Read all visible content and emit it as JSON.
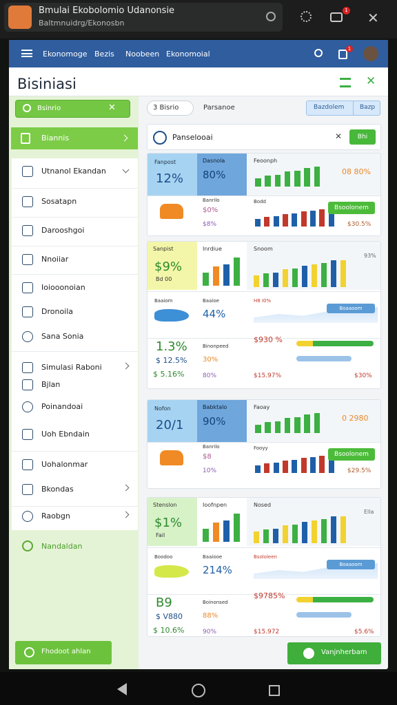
{
  "app": {
    "title": "Bmulai Ekobolomio Udanonsie",
    "subtitle": "Baltmnuidrg/Ekonosbn",
    "badge": "1"
  },
  "nav": {
    "items": [
      "Ekonomoge",
      "Bezis",
      "Noobeen",
      "Ekonomoial"
    ],
    "badge": "1"
  },
  "page": {
    "title": "Bisiniasi"
  },
  "sidebar": {
    "search": "Bsinrio",
    "active": "Biannis",
    "items": [
      "Utnanol Ekandan",
      "Sosatapn",
      "Darooshgoi",
      "Nnoiiar",
      "Ioiooonoian",
      "Dronoila",
      "Sana Sonia",
      "Simulasi Raboni",
      "Bjlan",
      "Poinandoai",
      "Uoh Ebndain",
      "Uohalonmar",
      "Bkondas",
      "Raobgn"
    ],
    "footer_item": "Nandaldan",
    "button": "Fhodoot ahlan"
  },
  "main": {
    "tabs": [
      "3 Bisrio",
      "Parsanoe"
    ],
    "toggle": [
      "Bazdolem",
      "Bazp"
    ],
    "panel_title": "Panselooai",
    "panel_button": "Bhi",
    "bottom_button": "Vanjnherbam"
  },
  "cards": [
    {
      "h1": "Fanpost",
      "v1": "12%",
      "h2": "Dasnola",
      "v2": "80%",
      "h3": "Feoonph",
      "v3": "08 80%",
      "l1": "Banrilo",
      "l2": "$0%",
      "l3": "$8%",
      "l4": "Bodd",
      "btn": "Bsoolonem",
      "l5": "$30.5%"
    },
    {
      "h1": "Sanpist",
      "v1": "$9%",
      "v1b": "Bd 00",
      "h2": "Inrdiue",
      "h3": "Snoom",
      "v3": "93%",
      "m1": "Baaiom",
      "m2": "Baaioe",
      "m3": "44%",
      "m4": "H8 I0%",
      "tag": "Boaaoom",
      "b1": "1.3%",
      "b2": "$ 12.5%",
      "b3": "$ 5.16%",
      "c1": "Binonpeed",
      "c2": "30%",
      "c3": "80%",
      "d1": "$930 %",
      "d2": "$15.97%",
      "d3": "$30%"
    },
    {
      "h1": "Nofon",
      "v1": "20/1",
      "h2": "Babktalo",
      "v2": "90%",
      "h3": "Faoay",
      "v3": "0 2980",
      "l1": "Banrilo",
      "l2": "$8",
      "l3": "10%",
      "l4": "Fooyy",
      "btn": "Bsoolonem",
      "l5": "$29.5%"
    },
    {
      "h1": "Stenslon",
      "v1": "$1%",
      "v1b": "Fail",
      "h2": "Ioofnpen",
      "h3": "Nosed",
      "v3": "Ella",
      "m1": "Boodoo",
      "m2": "Baaiooe",
      "m3": "214%",
      "m4": "Bsololeen",
      "tag": "Boaaoom",
      "b1": "B9",
      "b2": "$ V880",
      "b3": "$ 10.6%",
      "c1": "Boinonsed",
      "c2": "88%",
      "c3": "90%",
      "d1": "$9785%",
      "d2": "$15.972",
      "d3": "$5.6%"
    }
  ]
}
